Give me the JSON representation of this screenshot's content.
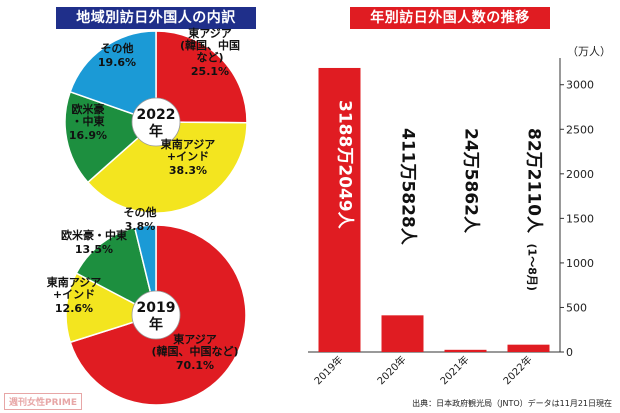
{
  "colors": {
    "east_asia": "#e01c22",
    "southeast_asia": "#f3e51f",
    "west": "#1d8f3f",
    "other": "#1b9ad6",
    "bar": "#e01c22"
  },
  "chart_data": [
    {
      "type": "pie",
      "title": "地域別訪日外国人の内訳",
      "center_label": [
        "2022",
        "年"
      ],
      "slices": [
        {
          "key": "east_asia",
          "label": [
            "東アジア",
            "(韓国、中国",
            "など)"
          ],
          "value": 25.1,
          "value_label": "25.1%"
        },
        {
          "key": "southeast_asia",
          "label": [
            "東南アジア",
            "+インド"
          ],
          "value": 38.3,
          "value_label": "38.3%"
        },
        {
          "key": "west",
          "label": [
            "欧米豪",
            "・中東"
          ],
          "value": 16.9,
          "value_label": "16.9%"
        },
        {
          "key": "other",
          "label": [
            "その他"
          ],
          "value": 19.6,
          "value_label": "19.6%"
        }
      ]
    },
    {
      "type": "pie",
      "center_label": [
        "2019",
        "年"
      ],
      "slices": [
        {
          "key": "east_asia",
          "label": [
            "東アジア",
            "(韓国、中国など)"
          ],
          "value": 70.1,
          "value_label": "70.1%"
        },
        {
          "key": "southeast_asia",
          "label": [
            "東南アジア",
            "+インド"
          ],
          "value": 12.6,
          "value_label": "12.6%"
        },
        {
          "key": "west",
          "label": [
            "欧米豪・中東"
          ],
          "value": 13.5,
          "value_label": "13.5%"
        },
        {
          "key": "other",
          "label": [
            "その他"
          ],
          "value": 3.8,
          "value_label": "3.8%"
        }
      ]
    },
    {
      "type": "bar",
      "title": "年別訪日外国人数の推移",
      "unit": "（万人）",
      "categories": [
        "2019年",
        "2020年",
        "2021年",
        "2022年"
      ],
      "values": [
        3188.2049,
        411.5828,
        24.5862,
        82.211
      ],
      "value_labels": [
        "3188万2049人",
        "411万5828人",
        "24万5862人",
        "82万2110人"
      ],
      "value_notes": [
        "",
        "",
        "",
        "(1〜8月)"
      ],
      "ylim": [
        0,
        3300
      ],
      "yticks": [
        0,
        500,
        1000,
        1500,
        2000,
        2500,
        3000
      ]
    }
  ],
  "source": "出典：日本政府観光局（JNTO）データは11月21日現在",
  "watermark": "週刊女性PRIME"
}
